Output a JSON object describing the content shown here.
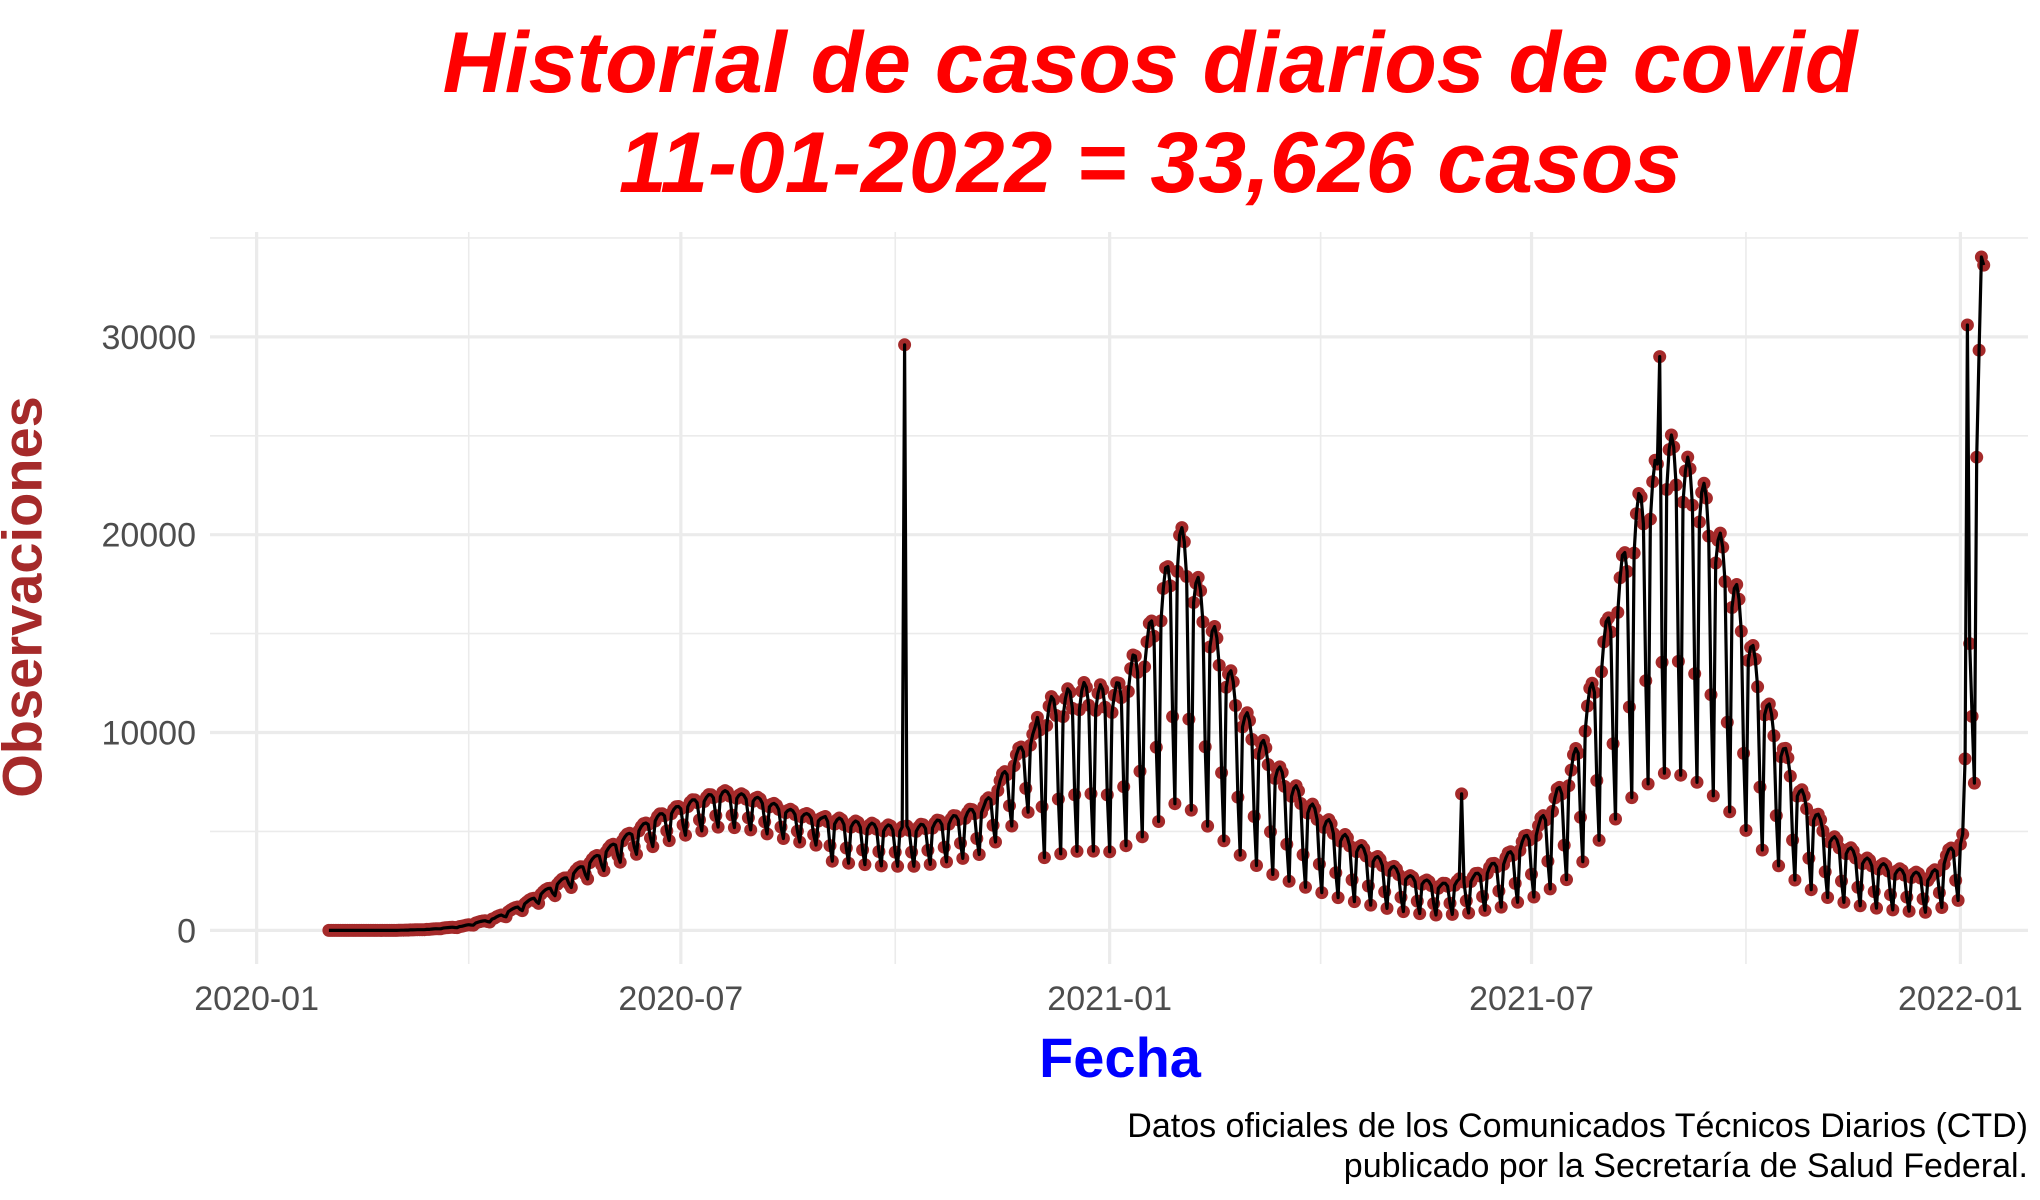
{
  "chart_data": {
    "type": "line",
    "title": "Historial de casos diarios de covid",
    "subtitle": "11-01-2022 = 33,626 casos",
    "xlabel": "Fecha",
    "ylabel": "Observaciones",
    "caption": [
      "Datos oficiales de los Comunicados Técnicos Diarios (CTD)",
      "publicado por la Secretaría de Salud Federal."
    ],
    "x_range": [
      "2019-12-12",
      "2022-01-30"
    ],
    "ylim": [
      -1700,
      35300
    ],
    "x_ticks": [
      "2020-01",
      "2020-07",
      "2021-01",
      "2021-07",
      "2022-01"
    ],
    "y_ticks": [
      0,
      10000,
      20000,
      30000
    ],
    "y_tick_labels": [
      "0",
      "10000",
      "20000",
      "30000"
    ],
    "grid": true,
    "colors": {
      "line": "#000000",
      "points": "#a52a2a",
      "grid": "#ebebeb",
      "title": "#ff0000",
      "xlabel": "#0000ff",
      "ylabel": "#a52a2a"
    },
    "series": [
      {
        "x": [
          "2020-02-01",
          "2020-02-15",
          "2020-03-01",
          "2020-03-15",
          "2020-03-29",
          "2020-04-12",
          "2020-04-26",
          "2020-05-10",
          "2020-05-24",
          "2020-06-07",
          "2020-06-21",
          "2020-07-05",
          "2020-07-19",
          "2020-08-02",
          "2020-08-16",
          "2020-08-30",
          "2020-09-13",
          "2020-09-27",
          "2020-10-11",
          "2020-10-25",
          "2020-11-08",
          "2020-11-22",
          "2020-12-06",
          "2020-12-20",
          "2021-01-03",
          "2021-01-17",
          "2021-01-31",
          "2021-02-14",
          "2021-02-28",
          "2021-03-14",
          "2021-03-28",
          "2021-04-11",
          "2021-04-25",
          "2021-05-09",
          "2021-05-23",
          "2021-06-06",
          "2021-06-20",
          "2021-07-04",
          "2021-07-18",
          "2021-08-01",
          "2021-08-15",
          "2021-08-29",
          "2021-09-12",
          "2021-09-26",
          "2021-10-10",
          "2021-10-24",
          "2021-11-07",
          "2021-11-21",
          "2021-12-05",
          "2021-12-19",
          "2022-01-02",
          "2022-01-11"
        ],
        "y": [
          0,
          0,
          0,
          50,
          200,
          600,
          1400,
          2400,
          3500,
          4600,
          5600,
          6300,
          6800,
          6500,
          5900,
          5500,
          5200,
          5000,
          5000,
          5400,
          6000,
          8500,
          10500,
          11200,
          11000,
          13500,
          18500,
          14000,
          10000,
          7500,
          5800,
          4400,
          3400,
          2500,
          2100,
          2500,
          3400,
          4900,
          7500,
          13500,
          19500,
          22500,
          20500,
          16000,
          10500,
          6500,
          4300,
          3300,
          2800,
          2500,
          4500,
          33626
        ]
      }
    ],
    "annotations": [
      {
        "x": "2020-10-05",
        "y": 29600
      },
      {
        "x": "2021-08-25",
        "y": 29000
      },
      {
        "x": "2021-06-01",
        "y": 6900
      },
      {
        "x": "2022-01-04",
        "y": 30600
      }
    ]
  }
}
